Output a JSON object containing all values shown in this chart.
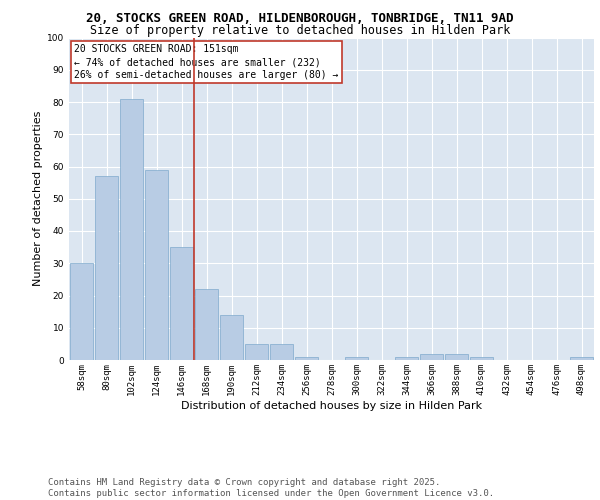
{
  "title_line1": "20, STOCKS GREEN ROAD, HILDENBOROUGH, TONBRIDGE, TN11 9AD",
  "title_line2": "Size of property relative to detached houses in Hilden Park",
  "xlabel": "Distribution of detached houses by size in Hilden Park",
  "ylabel": "Number of detached properties",
  "categories": [
    "58sqm",
    "80sqm",
    "102sqm",
    "124sqm",
    "146sqm",
    "168sqm",
    "190sqm",
    "212sqm",
    "234sqm",
    "256sqm",
    "278sqm",
    "300sqm",
    "322sqm",
    "344sqm",
    "366sqm",
    "388sqm",
    "410sqm",
    "432sqm",
    "454sqm",
    "476sqm",
    "498sqm"
  ],
  "values": [
    30,
    57,
    81,
    59,
    35,
    22,
    14,
    5,
    5,
    1,
    0,
    1,
    0,
    1,
    2,
    2,
    1,
    0,
    0,
    0,
    1
  ],
  "bar_color": "#b8cce4",
  "bar_edge_color": "#7faacc",
  "background_color": "#dce6f1",
  "grid_color": "#ffffff",
  "vline_index": 4,
  "vline_color": "#c0392b",
  "annotation_box_text": "20 STOCKS GREEN ROAD: 151sqm\n← 74% of detached houses are smaller (232)\n26% of semi-detached houses are larger (80) →",
  "annotation_box_color": "#c0392b",
  "ylim": [
    0,
    100
  ],
  "yticks": [
    0,
    10,
    20,
    30,
    40,
    50,
    60,
    70,
    80,
    90,
    100
  ],
  "footer_text": "Contains HM Land Registry data © Crown copyright and database right 2025.\nContains public sector information licensed under the Open Government Licence v3.0.",
  "title_fontsize": 9,
  "subtitle_fontsize": 8.5,
  "axis_label_fontsize": 8,
  "tick_fontsize": 6.5,
  "annotation_fontsize": 7,
  "footer_fontsize": 6.5
}
